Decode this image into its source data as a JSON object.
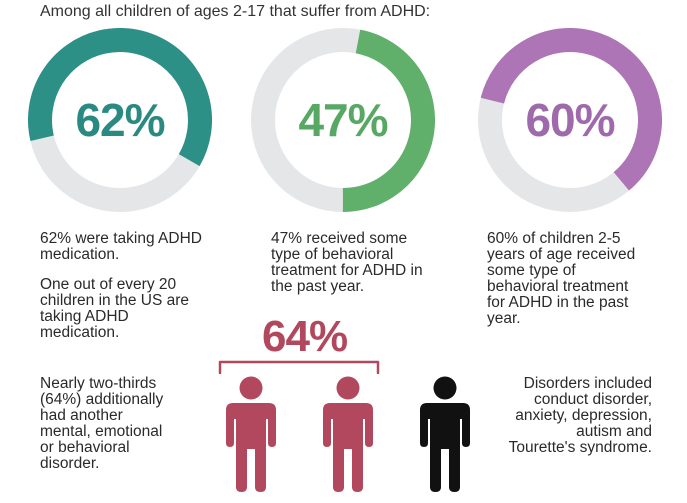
{
  "heading": "Among all children of ages 2-17 that suffer from ADHD:",
  "chart_data": {
    "type": "pie",
    "title": "Among all children of ages 2-17 that suffer from ADHD:",
    "track_color": "#e5e6e8",
    "series": [
      {
        "name": "taking ADHD medication",
        "value": 62,
        "label": "62%",
        "color": "#2d9087",
        "text_color": "#2a8a81"
      },
      {
        "name": "received behavioral treatment",
        "value": 47,
        "label": "47%",
        "color": "#60b06b",
        "text_color": "#56a862"
      },
      {
        "name": "children 2-5 received behavioral treatment",
        "value": 60,
        "label": "60%",
        "color": "#ad74b6",
        "text_color": "#9f6aab"
      }
    ]
  },
  "captions": {
    "c1": [
      "62% were taking ADHD",
      "medication."
    ],
    "c2": [
      "One out of every 20",
      "children in the US are",
      "taking ADHD",
      "medication."
    ],
    "c3": [
      "47% received some",
      "type of behavioral",
      "treatment for ADHD in",
      "the past year."
    ],
    "c4": [
      "60% of children 2-5",
      "years of age received",
      "some type of",
      "behavioral treatment",
      "for ADHD in the past",
      "year."
    ],
    "c5": [
      "Nearly two-thirds",
      "(64%) additionally",
      "had another",
      "mental, emotional",
      "or behavioral",
      "disorder."
    ],
    "c6": [
      "Disorders included",
      "conduct disorder,",
      "anxiety, depression,",
      "autism and",
      "Tourette's syndrome."
    ]
  },
  "comorbidity": {
    "label": "64%",
    "affected_color": "#b2485d",
    "unaffected_color": "#111111",
    "people": [
      {
        "affected": true
      },
      {
        "affected": true
      },
      {
        "affected": false
      }
    ]
  }
}
